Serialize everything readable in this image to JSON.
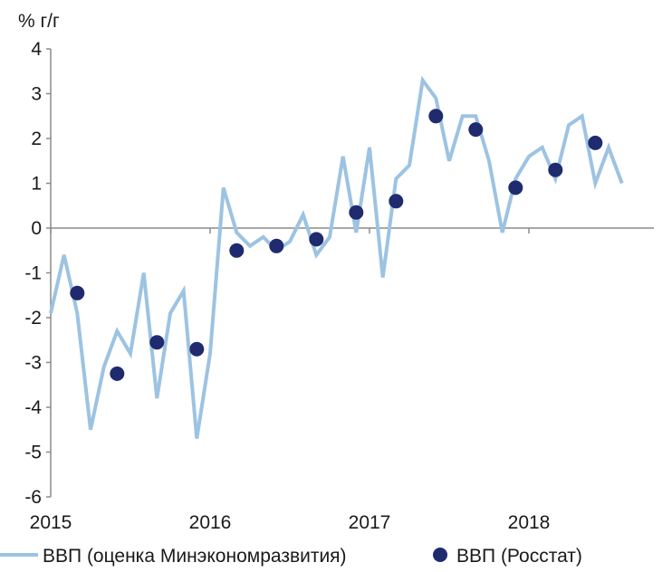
{
  "chart_data": {
    "type": "line",
    "ylabel": "% г/г",
    "xlabel": "",
    "ylim": [
      -6,
      4
    ],
    "yticks": [
      "4",
      "3",
      "2",
      "1",
      "0",
      "-1",
      "-2",
      "-3",
      "-4",
      "-5",
      "-6"
    ],
    "xticks": [
      "2015",
      "2016",
      "2017",
      "2018"
    ],
    "x_start": "2015-01",
    "x_end": "2018-08",
    "grid": false,
    "legend": "bottom",
    "series": [
      {
        "name": "ВВП (оценка Минэкономразвития)",
        "style": "line",
        "color": "#9dc3e2",
        "x": [
          "2015-01",
          "2015-02",
          "2015-03",
          "2015-04",
          "2015-05",
          "2015-06",
          "2015-07",
          "2015-08",
          "2015-09",
          "2015-10",
          "2015-11",
          "2015-12",
          "2016-01",
          "2016-02",
          "2016-03",
          "2016-04",
          "2016-05",
          "2016-06",
          "2016-07",
          "2016-08",
          "2016-09",
          "2016-10",
          "2016-11",
          "2016-12",
          "2017-01",
          "2017-02",
          "2017-03",
          "2017-04",
          "2017-05",
          "2017-06",
          "2017-07",
          "2017-08",
          "2017-09",
          "2017-10",
          "2017-11",
          "2017-12",
          "2018-01",
          "2018-02",
          "2018-03",
          "2018-04",
          "2018-05",
          "2018-06",
          "2018-07",
          "2018-08"
        ],
        "values": [
          -1.9,
          -0.6,
          -1.9,
          -4.5,
          -3.1,
          -2.3,
          -2.8,
          -1.0,
          -3.8,
          -1.9,
          -1.4,
          -4.7,
          -2.8,
          0.9,
          -0.1,
          -0.4,
          -0.2,
          -0.5,
          -0.3,
          0.3,
          -0.6,
          -0.2,
          1.6,
          -0.1,
          1.8,
          -1.1,
          1.1,
          1.4,
          3.3,
          2.9,
          1.5,
          2.5,
          2.5,
          1.5,
          -0.1,
          1.1,
          1.6,
          1.8,
          1.1,
          2.3,
          2.5,
          1.0,
          1.8,
          1.0
        ]
      },
      {
        "name": "ВВП (Росстат)",
        "style": "dots",
        "color": "#1f2b6e",
        "x": [
          "2015-03",
          "2015-06",
          "2015-09",
          "2015-12",
          "2016-03",
          "2016-06",
          "2016-09",
          "2016-12",
          "2017-03",
          "2017-06",
          "2017-09",
          "2017-12",
          "2018-03",
          "2018-06"
        ],
        "values": [
          -1.45,
          -3.25,
          -2.55,
          -2.7,
          -0.5,
          -0.4,
          -0.25,
          0.35,
          0.6,
          2.5,
          2.2,
          0.9,
          1.3,
          1.9
        ]
      }
    ]
  }
}
